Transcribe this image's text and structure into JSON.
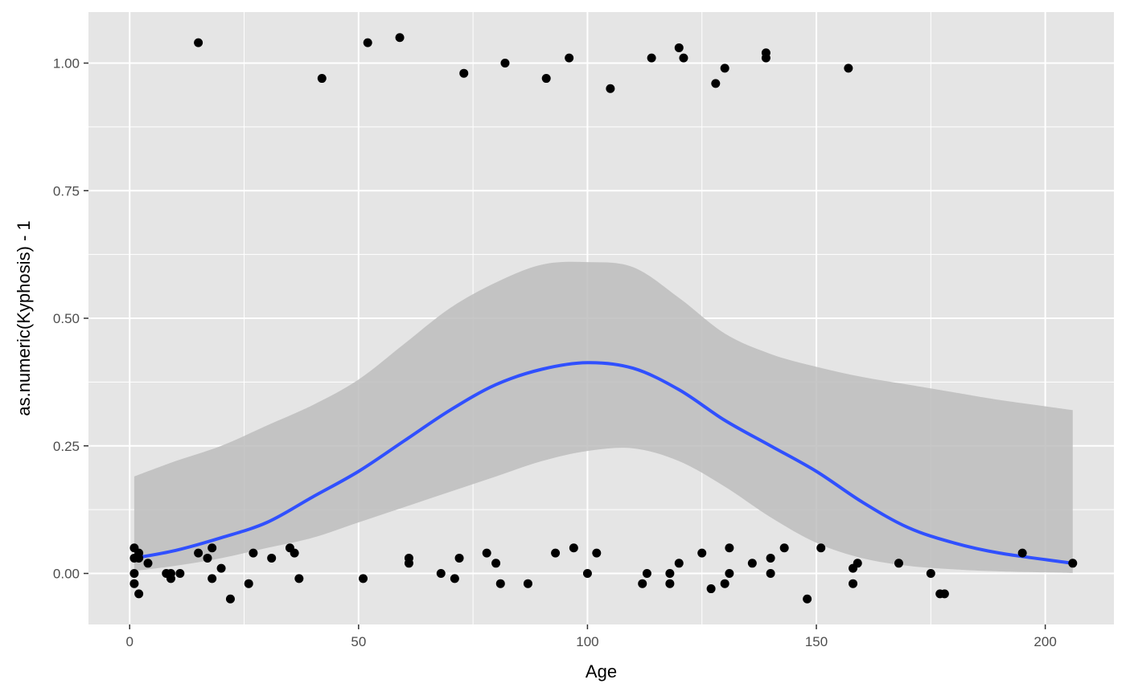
{
  "chart_data": {
    "type": "scatter",
    "title": "",
    "xlabel": "Age",
    "ylabel": "as.numeric(Kyphosis) - 1",
    "xlim": [
      -9,
      215
    ],
    "ylim": [
      -0.1,
      1.1
    ],
    "x_ticks": [
      0,
      50,
      100,
      150,
      200
    ],
    "x_tick_labels": [
      "0",
      "50",
      "100",
      "150",
      "200"
    ],
    "y_ticks": [
      0,
      0.25,
      0.5,
      0.75,
      1
    ],
    "y_tick_labels": [
      "0.00",
      "0.25",
      "0.50",
      "0.75",
      "1.00"
    ],
    "grid": true,
    "legend": "none",
    "colors": {
      "panel_background": "#e5e5e5",
      "grid": "#ffffff",
      "points": "#000000",
      "smooth_line": "#3050ff",
      "ribbon": "#bdbdbd"
    },
    "series": [
      {
        "type": "scatter",
        "points": [
          [
            15,
            1.04
          ],
          [
            42,
            0.97
          ],
          [
            52,
            1.04
          ],
          [
            59,
            1.05
          ],
          [
            73,
            0.98
          ],
          [
            82,
            1.0
          ],
          [
            91,
            0.97
          ],
          [
            96,
            1.01
          ],
          [
            105,
            0.95
          ],
          [
            114,
            1.01
          ],
          [
            120,
            1.03
          ],
          [
            121,
            1.01
          ],
          [
            128,
            0.96
          ],
          [
            130,
            0.99
          ],
          [
            139,
            1.02
          ],
          [
            139,
            1.01
          ],
          [
            157,
            0.99
          ],
          [
            1,
            0.05
          ],
          [
            1,
            0.03
          ],
          [
            1,
            -0.02
          ],
          [
            1,
            0.0
          ],
          [
            2,
            0.04
          ],
          [
            2,
            -0.04
          ],
          [
            2,
            0.03
          ],
          [
            4,
            0.02
          ],
          [
            8,
            0.0
          ],
          [
            9,
            0.0
          ],
          [
            9,
            -0.01
          ],
          [
            11,
            0.0
          ],
          [
            15,
            0.04
          ],
          [
            17,
            0.03
          ],
          [
            18,
            0.05
          ],
          [
            18,
            -0.01
          ],
          [
            20,
            0.01
          ],
          [
            22,
            -0.05
          ],
          [
            26,
            -0.02
          ],
          [
            27,
            0.04
          ],
          [
            31,
            0.03
          ],
          [
            35,
            0.05
          ],
          [
            36,
            0.04
          ],
          [
            37,
            -0.01
          ],
          [
            51,
            -0.01
          ],
          [
            61,
            0.02
          ],
          [
            61,
            0.03
          ],
          [
            68,
            0.0
          ],
          [
            71,
            -0.01
          ],
          [
            72,
            0.03
          ],
          [
            78,
            0.04
          ],
          [
            80,
            0.02
          ],
          [
            81,
            -0.02
          ],
          [
            87,
            -0.02
          ],
          [
            93,
            0.04
          ],
          [
            97,
            0.05
          ],
          [
            100,
            0.0
          ],
          [
            102,
            0.04
          ],
          [
            112,
            -0.02
          ],
          [
            113,
            0.0
          ],
          [
            118,
            -0.02
          ],
          [
            118,
            0.0
          ],
          [
            120,
            0.02
          ],
          [
            125,
            0.04
          ],
          [
            127,
            -0.03
          ],
          [
            130,
            -0.02
          ],
          [
            131,
            0.0
          ],
          [
            131,
            0.05
          ],
          [
            136,
            0.02
          ],
          [
            140,
            0.0
          ],
          [
            140,
            0.03
          ],
          [
            143,
            0.05
          ],
          [
            148,
            -0.05
          ],
          [
            151,
            0.05
          ],
          [
            158,
            -0.02
          ],
          [
            158,
            0.01
          ],
          [
            159,
            0.02
          ],
          [
            168,
            0.02
          ],
          [
            175,
            0.0
          ],
          [
            177,
            -0.04
          ],
          [
            178,
            -0.04
          ],
          [
            195,
            0.04
          ],
          [
            206,
            0.02
          ]
        ]
      },
      {
        "type": "line",
        "x": [
          1,
          10,
          20,
          30,
          40,
          50,
          60,
          70,
          80,
          90,
          100,
          110,
          120,
          130,
          140,
          150,
          160,
          170,
          180,
          190,
          206
        ],
        "y": [
          0.03,
          0.045,
          0.07,
          0.1,
          0.15,
          0.2,
          0.26,
          0.32,
          0.37,
          0.4,
          0.413,
          0.402,
          0.36,
          0.3,
          0.25,
          0.2,
          0.14,
          0.09,
          0.06,
          0.04,
          0.02
        ]
      },
      {
        "type": "area",
        "x": [
          1,
          10,
          20,
          30,
          40,
          50,
          60,
          70,
          80,
          90,
          100,
          110,
          120,
          130,
          140,
          150,
          160,
          170,
          180,
          190,
          206
        ],
        "lower": [
          0.005,
          0.015,
          0.03,
          0.05,
          0.07,
          0.1,
          0.13,
          0.16,
          0.19,
          0.22,
          0.24,
          0.245,
          0.22,
          0.17,
          0.11,
          0.06,
          0.03,
          0.015,
          0.008,
          0.004,
          0.001
        ],
        "upper": [
          0.19,
          0.22,
          0.25,
          0.29,
          0.33,
          0.38,
          0.45,
          0.52,
          0.57,
          0.605,
          0.61,
          0.6,
          0.54,
          0.47,
          0.43,
          0.405,
          0.385,
          0.37,
          0.355,
          0.34,
          0.32
        ]
      }
    ]
  }
}
